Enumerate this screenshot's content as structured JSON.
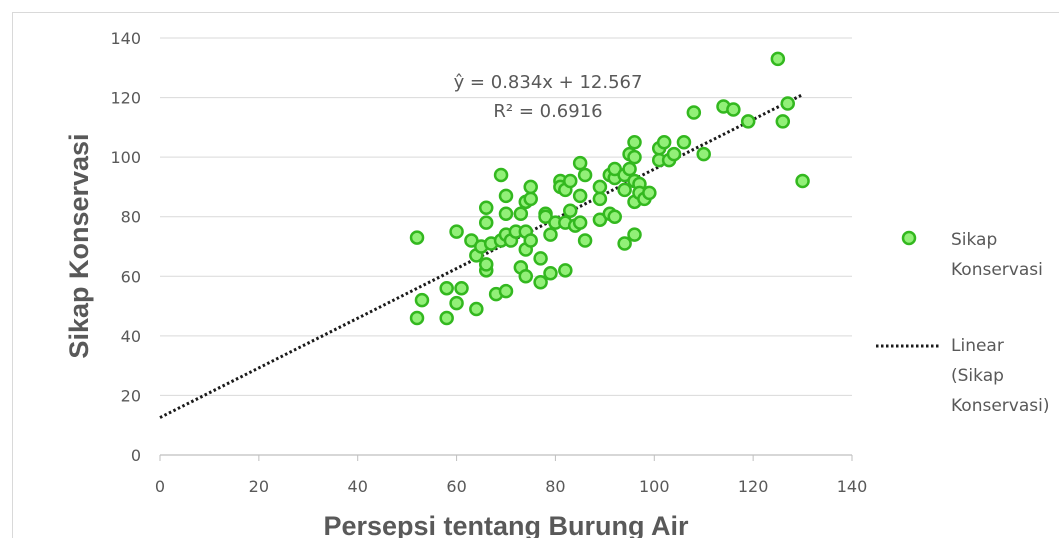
{
  "chart_data": {
    "type": "scatter",
    "title": "",
    "xlabel": "Persepsi tentang Burung Air",
    "ylabel": "Sikap Konservasi",
    "xlim": [
      0,
      140
    ],
    "ylim": [
      0,
      140
    ],
    "xticks": [
      "0",
      "20",
      "40",
      "60",
      "80",
      "100",
      "120",
      "140"
    ],
    "yticks": [
      "0",
      "20",
      "40",
      "60",
      "80",
      "100",
      "120",
      "140"
    ],
    "grid": "horizontal",
    "legend_position": "right",
    "series": [
      {
        "name": "Sikap Konservasi",
        "kind": "scatter",
        "color_fill": "#92f078",
        "color_edge": "#33b81f",
        "points": [
          [
            52,
            73
          ],
          [
            52,
            46
          ],
          [
            53,
            52
          ],
          [
            58,
            56
          ],
          [
            58,
            46
          ],
          [
            60,
            75
          ],
          [
            60,
            51
          ],
          [
            61,
            56
          ],
          [
            63,
            72
          ],
          [
            64,
            49
          ],
          [
            64,
            67
          ],
          [
            65,
            70
          ],
          [
            66,
            62
          ],
          [
            66,
            64
          ],
          [
            66,
            78
          ],
          [
            66,
            83
          ],
          [
            67,
            71
          ],
          [
            68,
            54
          ],
          [
            69,
            94
          ],
          [
            69,
            72
          ],
          [
            70,
            55
          ],
          [
            70,
            74
          ],
          [
            70,
            81
          ],
          [
            70,
            87
          ],
          [
            71,
            72
          ],
          [
            72,
            75
          ],
          [
            73,
            81
          ],
          [
            73,
            63
          ],
          [
            74,
            75
          ],
          [
            74,
            69
          ],
          [
            74,
            60
          ],
          [
            74,
            85
          ],
          [
            75,
            72
          ],
          [
            75,
            86
          ],
          [
            75,
            90
          ],
          [
            77,
            58
          ],
          [
            77,
            66
          ],
          [
            78,
            81
          ],
          [
            78,
            80
          ],
          [
            79,
            74
          ],
          [
            79,
            61
          ],
          [
            80,
            78
          ],
          [
            81,
            92
          ],
          [
            81,
            90
          ],
          [
            82,
            62
          ],
          [
            82,
            78
          ],
          [
            82,
            89
          ],
          [
            83,
            92
          ],
          [
            83,
            82
          ],
          [
            84,
            77
          ],
          [
            85,
            98
          ],
          [
            85,
            87
          ],
          [
            85,
            78
          ],
          [
            86,
            72
          ],
          [
            86,
            94
          ],
          [
            89,
            79
          ],
          [
            89,
            90
          ],
          [
            89,
            86
          ],
          [
            91,
            81
          ],
          [
            91,
            94
          ],
          [
            92,
            80
          ],
          [
            92,
            93
          ],
          [
            92,
            96
          ],
          [
            94,
            71
          ],
          [
            94,
            89
          ],
          [
            94,
            94
          ],
          [
            95,
            101
          ],
          [
            95,
            96
          ],
          [
            96,
            105
          ],
          [
            96,
            100
          ],
          [
            96,
            92
          ],
          [
            96,
            85
          ],
          [
            96,
            74
          ],
          [
            97,
            91
          ],
          [
            97,
            88
          ],
          [
            98,
            86
          ],
          [
            99,
            88
          ],
          [
            101,
            99
          ],
          [
            101,
            103
          ],
          [
            102,
            105
          ],
          [
            103,
            99
          ],
          [
            104,
            101
          ],
          [
            106,
            105
          ],
          [
            108,
            115
          ],
          [
            110,
            101
          ],
          [
            114,
            117
          ],
          [
            116,
            116
          ],
          [
            119,
            112
          ],
          [
            125,
            133
          ],
          [
            126,
            112
          ],
          [
            127,
            118
          ],
          [
            130,
            92
          ]
        ]
      },
      {
        "name": "Linear (Sikap Konservasi)",
        "kind": "trendline",
        "style": "dotted",
        "color": "#1a1a1a",
        "slope": 0.834,
        "intercept": 12.567,
        "x_range": [
          0,
          130
        ]
      }
    ],
    "annotations": {
      "equation": "ŷ = 0.834x + 12.567",
      "r_squared": "R² = 0.6916"
    }
  },
  "legend": {
    "scatter_label_line1": "Sikap",
    "scatter_label_line2": "Konservasi",
    "trend_label_line1": "Linear",
    "trend_label_line2": "(Sikap",
    "trend_label_line3": "Konservasi)"
  }
}
